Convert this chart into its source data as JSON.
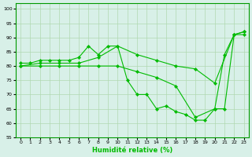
{
  "xlabel": "Humidité relative (%)",
  "background_color": "#d8f0e8",
  "line_color": "#00bb00",
  "grid_color": "#b0d8b0",
  "xlim": [
    -0.5,
    23.5
  ],
  "ylim": [
    55,
    102
  ],
  "yticks": [
    55,
    60,
    65,
    70,
    75,
    80,
    85,
    90,
    95,
    100
  ],
  "xticks": [
    0,
    1,
    2,
    3,
    4,
    5,
    6,
    7,
    8,
    9,
    10,
    11,
    12,
    13,
    14,
    15,
    16,
    17,
    18,
    19,
    20,
    21,
    22,
    23
  ],
  "series": [
    {
      "x": [
        0,
        1,
        2,
        3,
        4,
        5,
        6,
        7,
        8,
        9,
        10,
        11,
        12,
        13,
        14,
        15,
        16,
        17,
        18,
        19,
        20,
        21,
        22,
        23
      ],
      "y": [
        81,
        81,
        82,
        82,
        82,
        82,
        83,
        87,
        84,
        87,
        87,
        75,
        70,
        70,
        65,
        66,
        64,
        63,
        61,
        61,
        65,
        84,
        91,
        92
      ]
    },
    {
      "x": [
        0,
        2,
        4,
        6,
        8,
        10,
        12,
        14,
        16,
        18,
        20,
        22,
        23
      ],
      "y": [
        80,
        81,
        81,
        81,
        83,
        87,
        84,
        82,
        80,
        79,
        74,
        91,
        92
      ]
    },
    {
      "x": [
        0,
        2,
        4,
        6,
        8,
        10,
        12,
        14,
        16,
        18,
        20,
        21,
        22,
        23
      ],
      "y": [
        80,
        80,
        80,
        80,
        80,
        80,
        78,
        76,
        73,
        62,
        65,
        65,
        91,
        91
      ]
    }
  ]
}
